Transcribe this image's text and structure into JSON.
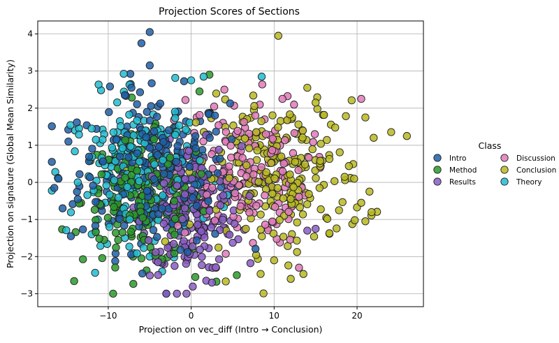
{
  "chart_data": {
    "type": "scatter",
    "title": "Projection Scores of Sections",
    "xlabel": "Projection on vec_diff (Intro → Conclusion)",
    "ylabel": "Projection on signature (Global Mean Similarity)",
    "xlim": [
      -18.5,
      28
    ],
    "ylim": [
      -3.35,
      4.35
    ],
    "xticks": [
      -10,
      0,
      10,
      20
    ],
    "xtick_labels": [
      "−10",
      "0",
      "10",
      "20"
    ],
    "yticks": [
      -3,
      -2,
      -1,
      0,
      1,
      2,
      3,
      4
    ],
    "ytick_labels": [
      "−3",
      "−2",
      "−1",
      "0",
      "1",
      "2",
      "3",
      "4"
    ],
    "grid": true,
    "legend": {
      "title": "Class",
      "placement": "right, outside plot",
      "columns": 2
    },
    "series": [
      {
        "name": "Intro",
        "color": "#1f5fa8",
        "n": 260,
        "cx": -4.5,
        "sx": 4.5,
        "cy": 0.3,
        "sy": 1.05,
        "points": [
          [
            -5,
            4.05
          ],
          [
            -6,
            3.75
          ],
          [
            -5,
            3.15
          ],
          [
            -7.3,
            2.65
          ],
          [
            -7.2,
            2.55
          ],
          [
            -8,
            2.35
          ],
          [
            -16.5,
            -0.15
          ],
          [
            -15.5,
            -0.7
          ],
          [
            -14.5,
            -1.45
          ],
          [
            -14.8,
            1.1
          ],
          [
            -16,
            0.1
          ],
          [
            -3,
            -3.0
          ]
        ]
      },
      {
        "name": "Method",
        "color": "#2a9a2a",
        "n": 200,
        "cx": -5.5,
        "sx": 3.8,
        "cy": -0.5,
        "sy": 0.85,
        "points": [
          [
            0.5,
            -2.55
          ],
          [
            5.5,
            -2.5
          ],
          [
            -10.5,
            -1.55
          ],
          [
            -7,
            -2.0
          ],
          [
            -6,
            -2.05
          ],
          [
            1,
            2.45
          ],
          [
            2.2,
            2.9
          ]
        ]
      },
      {
        "name": "Results",
        "color": "#8a5cc4",
        "n": 220,
        "cx": 0.0,
        "sx": 3.0,
        "cy": -0.75,
        "sy": 0.85,
        "points": [
          [
            -3,
            -3.0
          ],
          [
            2.5,
            -2.7
          ],
          [
            -4,
            -2.15
          ],
          [
            -2,
            -2.25
          ],
          [
            -0.5,
            -2.1
          ],
          [
            14,
            -1.3
          ],
          [
            15,
            -1.25
          ]
        ]
      },
      {
        "name": "Discussion",
        "color": "#e07ab8",
        "n": 170,
        "cx": 6.0,
        "sx": 4.0,
        "cy": 0.3,
        "sy": 1.0,
        "points": [
          [
            20.5,
            2.25
          ],
          [
            11,
            2.25
          ],
          [
            4,
            2.5
          ],
          [
            13,
            -2.3
          ],
          [
            3,
            -2.3
          ],
          [
            6,
            0.85
          ],
          [
            9,
            1.3
          ]
        ]
      },
      {
        "name": "Conclusion",
        "color": "#b8b821",
        "n": 230,
        "cx": 11.0,
        "sx": 5.0,
        "cy": 0.15,
        "sy": 1.0,
        "points": [
          [
            10.5,
            3.95
          ],
          [
            26,
            1.25
          ],
          [
            22,
            1.2
          ],
          [
            21,
            1.75
          ],
          [
            20.5,
            -0.55
          ],
          [
            21,
            -1.05
          ],
          [
            12,
            -2.6
          ],
          [
            10,
            -2.1
          ],
          [
            14,
            2.55
          ],
          [
            15,
            2.15
          ],
          [
            18.5,
            0.15
          ],
          [
            21.5,
            -0.25
          ]
        ]
      },
      {
        "name": "Theory",
        "color": "#21bcd0",
        "n": 200,
        "cx": -6.5,
        "sx": 4.0,
        "cy": 0.35,
        "sy": 0.95,
        "points": [
          [
            1.5,
            2.85
          ],
          [
            8.5,
            2.85
          ],
          [
            0,
            2.75
          ],
          [
            -3.5,
            -2.4
          ],
          [
            -12,
            1.45
          ],
          [
            -14,
            1.4
          ],
          [
            -8,
            -1.5
          ],
          [
            -12,
            -1.4
          ]
        ]
      }
    ]
  }
}
